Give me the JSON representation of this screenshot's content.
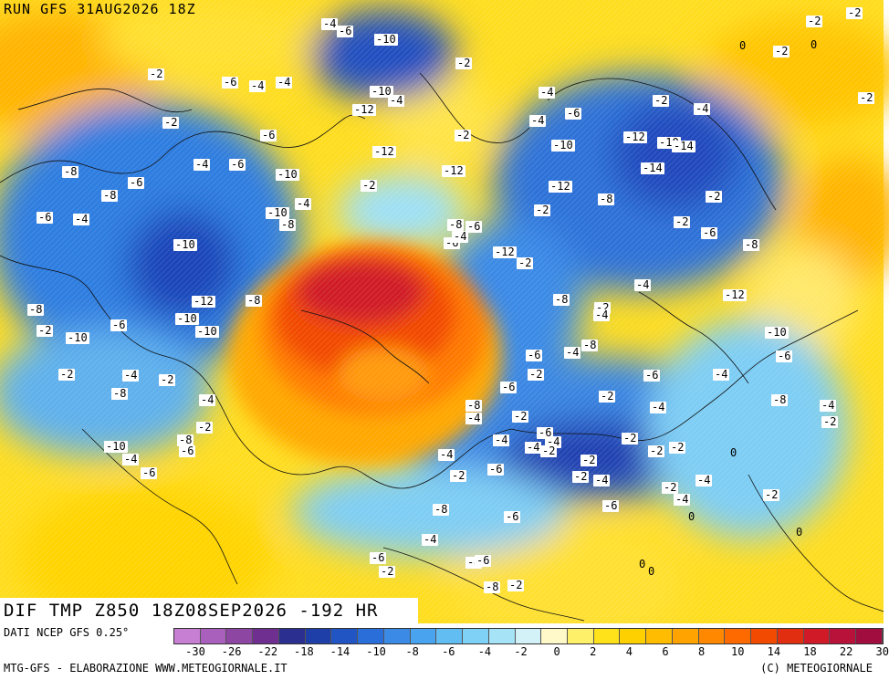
{
  "header": {
    "run_title": "RUN GFS 31AUG2026 18Z"
  },
  "map_title": "DIF TMP Z850 18Z08SEP2026 -192 HR",
  "legend": {
    "caption": "DATI NCEP GFS 0.25°",
    "footer_left": "MTG-GFS - ELABORAZIONE WWW.METEOGIORNALE.IT",
    "footer_right": "(C) METEOGIORNALE",
    "tick_labels": [
      "-30",
      "-26",
      "-22",
      "-18",
      "-14",
      "-10",
      "-8",
      "-6",
      "-4",
      "-2",
      "0",
      "2",
      "4",
      "6",
      "8",
      "10",
      "14",
      "18",
      "22",
      "30"
    ],
    "colors": [
      "#c77fd4",
      "#a960bd",
      "#8e46a3",
      "#6f2f90",
      "#2b2f8f",
      "#1f3fa8",
      "#2155c4",
      "#2a6fd9",
      "#3a8ae6",
      "#4aa3ee",
      "#62bdf2",
      "#7fd1f5",
      "#a6e3f7",
      "#d2f2f8",
      "#fff8c8",
      "#fff06a",
      "#ffe21a",
      "#ffd000",
      "#ffbc00",
      "#ffa300",
      "#ff8800",
      "#ff6a00",
      "#f24a00",
      "#e12d10",
      "#d01a28",
      "#b8123a",
      "#a00d3e"
    ],
    "colors_note": "continuous scale from violet (-30) through blue, cyan, yellow, orange to dark red (+30)"
  },
  "contour_labels": [
    "-4",
    "-6",
    "-10",
    "-10",
    "-12",
    "-12",
    "-2",
    "-4",
    "-2",
    "-2",
    "-12",
    "-4",
    "-2",
    "-6",
    "-4",
    "-4",
    "-2",
    "-4",
    "-6",
    "-6",
    "-4",
    "-8",
    "-6",
    "-10",
    "-10",
    "-12",
    "-10",
    "-8",
    "-10",
    "-6",
    "-10",
    "-6",
    "-4",
    "-8",
    "-8",
    "-10",
    "-2",
    "-2",
    "-8",
    "-4",
    "-2",
    "-4",
    "-2",
    "-8",
    "-6",
    "-4",
    "-6",
    "-10",
    "-8",
    "-8",
    "-6",
    "-6",
    "-12",
    "-2",
    "-4",
    "-8",
    "-2",
    "-4",
    "-4",
    "-8",
    "-6",
    "-2",
    "-6",
    "-8",
    "-4",
    "-2",
    "-6",
    "-4",
    "-4",
    "-2",
    "-2",
    "-4",
    "-6",
    "-2",
    "-4",
    "-6",
    "-8",
    "-4",
    "-2",
    "-4",
    "-6",
    "-4",
    "-6",
    "-2",
    "-6",
    "-8",
    "-2",
    "-4",
    "-6",
    "-10",
    "-12",
    "-10",
    "-14",
    "-14",
    "-12",
    "-8",
    "-2",
    "-2",
    "-2",
    "-6",
    "-8",
    "-4",
    "-12",
    "-10",
    "-6",
    "-8",
    "-4",
    "-2",
    "-6",
    "-4",
    "-2",
    "-4",
    "-2",
    "-2",
    "-2",
    "-4",
    "-2",
    "-4",
    "0",
    "-2",
    "0",
    "0",
    "0",
    "0",
    "-2",
    "-2",
    "0",
    "-2",
    "-2",
    "-4",
    "-2",
    "0",
    "-2",
    "0",
    "-2",
    "-2"
  ]
}
